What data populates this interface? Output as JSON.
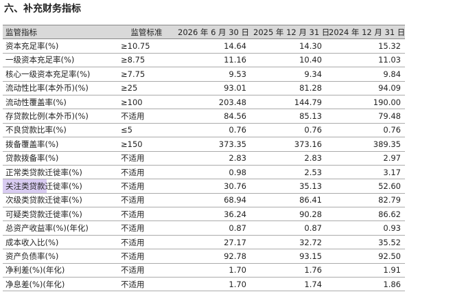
{
  "header": {
    "title": "六、补充财务指标"
  },
  "table": {
    "columns": [
      "监管指标",
      "监管标准",
      "2026 年 6 月 30 日",
      "2025 年 12 月 31 日",
      "2024 年 12 月 31 日"
    ],
    "rows": [
      [
        "资本充足率(%)",
        "≥10.75",
        "14.64",
        "14.30",
        "15.32"
      ],
      [
        "一级资本充足率(%)",
        "≥8.75",
        "11.16",
        "10.40",
        "11.03"
      ],
      [
        "核心一级资本充足率(%)",
        "≥7.75",
        "9.53",
        "9.34",
        "9.84"
      ],
      [
        "流动性比率(本外币)(%)",
        "≥25",
        "93.01",
        "81.28",
        "94.09"
      ],
      [
        "流动性覆盖率(%)",
        "≥100",
        "203.48",
        "144.79",
        "190.00"
      ],
      [
        "存贷款比例(本外币)(%)",
        "不适用",
        "84.56",
        "85.13",
        "79.48"
      ],
      [
        "不良贷款比率(%)",
        "≤5",
        "0.76",
        "0.76",
        "0.76"
      ],
      [
        "拨备覆盖率(%)",
        "≥150",
        "373.35",
        "373.16",
        "389.35"
      ],
      [
        "贷款拨备率(%)",
        "不适用",
        "2.83",
        "2.83",
        "2.97"
      ],
      [
        "正常类贷款迁徙率(%)",
        "不适用",
        "0.98",
        "2.53",
        "3.17"
      ],
      [
        "关注类贷款迁徙率(%)",
        "不适用",
        "30.76",
        "35.13",
        "52.60"
      ],
      [
        "次级类贷款迁徙率(%)",
        "不适用",
        "68.94",
        "86.41",
        "82.79"
      ],
      [
        "可疑类贷款迁徙率(%)",
        "不适用",
        "36.24",
        "90.28",
        "86.62"
      ],
      [
        "总资产收益率(%)(年化)",
        "不适用",
        "0.87",
        "0.87",
        "0.93"
      ],
      [
        "成本收入比(%)",
        "不适用",
        "27.17",
        "32.72",
        "35.52"
      ],
      [
        "资产负债率(%)",
        "不适用",
        "92.78",
        "93.15",
        "92.50"
      ],
      [
        "净利差(%)(年化)",
        "不适用",
        "1.70",
        "1.76",
        "1.91"
      ],
      [
        "净息差(%)(年化)",
        "不适用",
        "1.70",
        "1.74",
        "1.86"
      ]
    ]
  }
}
